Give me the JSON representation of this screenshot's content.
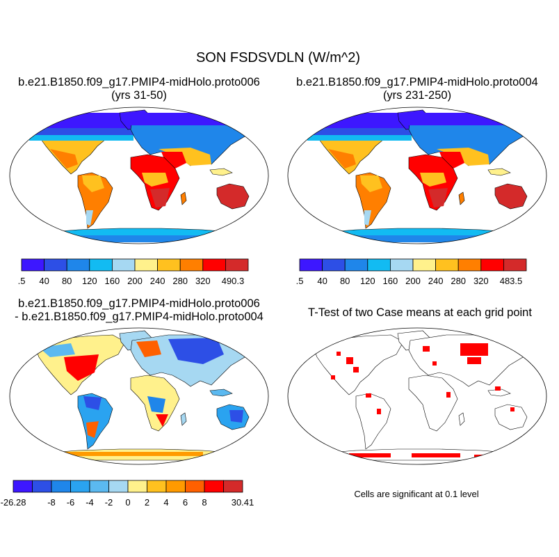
{
  "figure": {
    "title": "SON FSDSVDLN (W/m^2)"
  },
  "panels": [
    {
      "id": "case1",
      "title_line1": "b.e21.B1850.f09_g17.PMIP4-midHolo.proto006",
      "title_line2": "(yrs 31-50)"
    },
    {
      "id": "case2",
      "title_line1": "b.e21.B1850.f09_g17.PMIP4-midHolo.proto004",
      "title_line2": "(yrs 231-250)"
    },
    {
      "id": "diff",
      "title_line1": "b.e21.B1850.f09_g17.PMIP4-midHolo.proto006",
      "title_line2": "- b.e21.B1850.f09_g17.PMIP4-midHolo.proto004"
    },
    {
      "id": "ttest",
      "title_line1": "T-Test of two Case means at each grid point",
      "note": "Cells are significant at 0.1 level"
    }
  ],
  "colorbars": {
    "absolute_colors": [
      "#3d17ff",
      "#2d4fe6",
      "#1f86ea",
      "#12bbf2",
      "#a6d8f2",
      "#fff18c",
      "#ffc11f",
      "#ff7f00",
      "#ff0000",
      "#d42a2a"
    ],
    "case1_labels": [
      ".5",
      "40",
      "80",
      "120",
      "160",
      "200",
      "240",
      "280",
      "320",
      "490.3"
    ],
    "case2_labels": [
      ".5",
      "40",
      "80",
      "120",
      "160",
      "200",
      "240",
      "280",
      "320",
      "483.5"
    ],
    "diff_colors": [
      "#3d17ff",
      "#2d4fe6",
      "#1f86ea",
      "#2aa3f0",
      "#5bb9f0",
      "#a6d8f2",
      "#fff18c",
      "#ffc11f",
      "#ff9a00",
      "#ff6000",
      "#ff0000",
      "#d42a2a"
    ],
    "diff_labels": [
      "-26.28",
      "-8",
      "-6",
      "-4",
      "-2",
      "0",
      "2",
      "4",
      "6",
      "8",
      "30.41"
    ]
  },
  "chart_data": [
    {
      "type": "heatmap",
      "title": "b.e21.B1850.f09_g17.PMIP4-midHolo.proto006 (yrs 31-50)",
      "variable": "FSDSVDLN",
      "units": "W/m^2",
      "season": "SON",
      "color_levels": [
        40,
        80,
        120,
        160,
        200,
        240,
        280,
        320
      ],
      "min": 0.5,
      "max": 490.3,
      "regions": [
        {
          "name": "high northern latitudes",
          "approx_value": 40
        },
        {
          "name": "Sahara / Arabia",
          "approx_value": 330
        },
        {
          "name": "Australia",
          "approx_value": 340
        },
        {
          "name": "southern Africa",
          "approx_value": 320
        },
        {
          "name": "Amazon",
          "approx_value": 270
        },
        {
          "name": "Antarctica",
          "approx_value": 120
        }
      ]
    },
    {
      "type": "heatmap",
      "title": "b.e21.B1850.f09_g17.PMIP4-midHolo.proto004 (yrs 231-250)",
      "variable": "FSDSVDLN",
      "units": "W/m^2",
      "season": "SON",
      "color_levels": [
        40,
        80,
        120,
        160,
        200,
        240,
        280,
        320
      ],
      "min": 0.5,
      "max": 483.5,
      "regions": [
        {
          "name": "high northern latitudes",
          "approx_value": 40
        },
        {
          "name": "Sahara / Arabia",
          "approx_value": 330
        },
        {
          "name": "Australia",
          "approx_value": 340
        },
        {
          "name": "southern Africa",
          "approx_value": 320
        },
        {
          "name": "Amazon",
          "approx_value": 270
        },
        {
          "name": "Antarctica",
          "approx_value": 120
        }
      ]
    },
    {
      "type": "heatmap",
      "title": "b.e21.B1850.f09_g17.PMIP4-midHolo.proto006 - b.e21.B1850.f09_g17.PMIP4-midHolo.proto004",
      "variable": "FSDSVDLN difference",
      "units": "W/m^2",
      "color_levels": [
        -8,
        -6,
        -4,
        -2,
        0,
        2,
        4,
        6,
        8
      ],
      "min": -26.28,
      "max": 30.41,
      "regions": [
        {
          "name": "eastern North America",
          "approx_value": 6
        },
        {
          "name": "central Asia",
          "approx_value": -6
        },
        {
          "name": "Amazon",
          "approx_value": -4
        },
        {
          "name": "southern Africa",
          "approx_value": -1
        },
        {
          "name": "Australia",
          "approx_value": -3
        },
        {
          "name": "Antarctic coast",
          "approx_value": 6
        }
      ]
    },
    {
      "type": "heatmap",
      "title": "T-Test of two Case means at each grid point",
      "significance_level": 0.1,
      "significant_color": "#ff0000",
      "regions": [
        {
          "name": "central Asia",
          "significant": true
        },
        {
          "name": "eastern North America",
          "significant": true
        },
        {
          "name": "Antarctic coast",
          "significant": true
        },
        {
          "name": "western Europe",
          "significant": true
        }
      ]
    }
  ]
}
